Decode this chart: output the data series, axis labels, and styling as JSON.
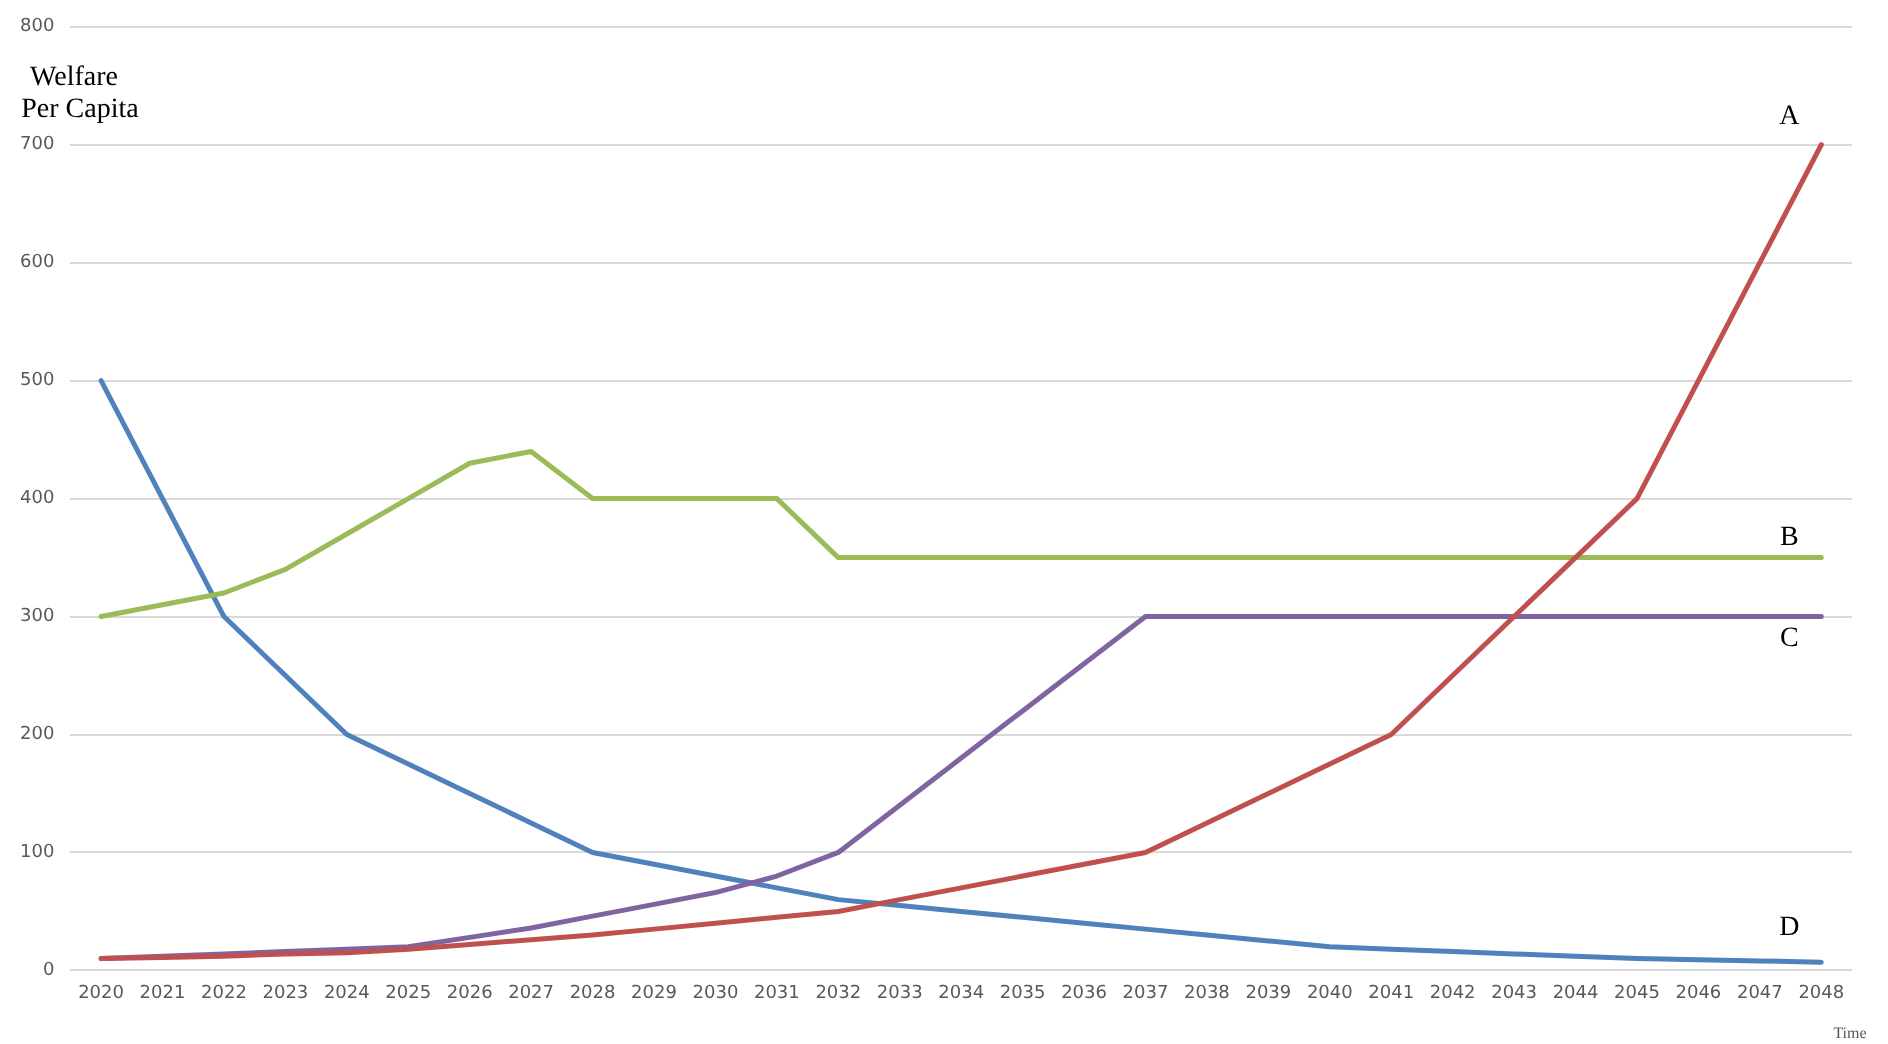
{
  "chart_data": {
    "type": "line",
    "xlabel": "Time",
    "ylabel": "Welfare Per Capita",
    "categories": [
      "2020",
      "2021",
      "2022",
      "2023",
      "2024",
      "2025",
      "2026",
      "2027",
      "2028",
      "2029",
      "2030",
      "2031",
      "2032",
      "2033",
      "2034",
      "2035",
      "2036",
      "2037",
      "2038",
      "2039",
      "2040",
      "2041",
      "2042",
      "2043",
      "2044",
      "2045",
      "2046",
      "2047",
      "2048"
    ],
    "series": [
      {
        "name": "A",
        "color": "#c0504d",
        "values": [
          10,
          11,
          12,
          14,
          15,
          18,
          22,
          26,
          30,
          35,
          40,
          45,
          50,
          60,
          70,
          80,
          90,
          100,
          125,
          150,
          175,
          200,
          250,
          300,
          350,
          400,
          500,
          600,
          700
        ]
      },
      {
        "name": "B",
        "color": "#9bbb59",
        "values": [
          300,
          310,
          320,
          340,
          370,
          400,
          430,
          440,
          400,
          400,
          400,
          400,
          350,
          350,
          350,
          350,
          350,
          350,
          350,
          350,
          350,
          350,
          350,
          350,
          350,
          350,
          350,
          350,
          350
        ]
      },
      {
        "name": "C",
        "color": "#8064a2",
        "values": [
          10,
          12,
          14,
          16,
          18,
          20,
          28,
          36,
          46,
          56,
          66,
          80,
          100,
          140,
          180,
          220,
          260,
          300,
          300,
          300,
          300,
          300,
          300,
          300,
          300,
          300,
          300,
          300,
          300
        ]
      },
      {
        "name": "D",
        "color": "#4f81bd",
        "values": [
          500,
          400,
          300,
          250,
          200,
          175,
          150,
          125,
          100,
          90,
          80,
          70,
          60,
          55,
          50,
          45,
          40,
          35,
          30,
          25,
          20,
          18,
          16,
          14,
          12,
          10,
          9,
          8,
          7
        ]
      }
    ],
    "ylim": [
      0,
      800
    ],
    "yticks": [
      0,
      100,
      200,
      300,
      400,
      500,
      600,
      700,
      800
    ],
    "grid": "y",
    "legend": false,
    "marker": "none",
    "line_style": "solid"
  }
}
